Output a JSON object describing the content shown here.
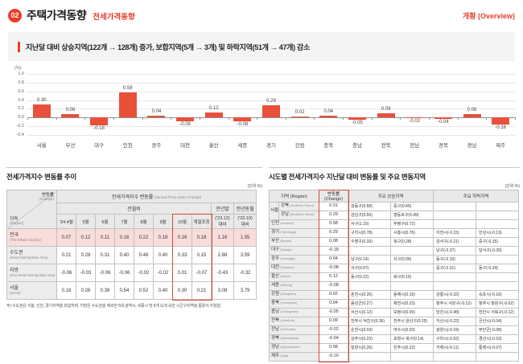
{
  "page": {
    "badge": "02",
    "title": "주택가격동향",
    "subtitle": "전세가격동향",
    "overview": "개황 (Overview)",
    "summary": "지난달 대비 상승지역(122개 → 128개) 증가, 보합지역(5개 → 3개) 및 하락지역(51개 → 47개) 감소"
  },
  "chart_data": {
    "type": "bar",
    "title": "",
    "unit_label": "(%)",
    "categories": [
      "서울",
      "부산",
      "대구",
      "인천",
      "광주",
      "대전",
      "울산",
      "세종",
      "경기",
      "강원",
      "충북",
      "충남",
      "전북",
      "전남",
      "경북",
      "경남",
      "제주"
    ],
    "values": [
      0.3,
      0.08,
      -0.18,
      0.58,
      0.04,
      -0.08,
      0.12,
      -0.08,
      0.29,
      0.02,
      0.04,
      -0.05,
      0.09,
      -0.02,
      -0.04,
      0.08,
      -0.16
    ],
    "xlabel": "",
    "ylabel": "(%)",
    "ylim": [
      -0.4,
      1.0
    ],
    "yticks": [
      1.0,
      0.8,
      0.6,
      0.4,
      0.2,
      0.0,
      -0.2,
      -0.4
    ],
    "grid": "horizontal-dotted",
    "legend": "none",
    "bar_color": "#e8503a"
  },
  "left_table": {
    "title": "전세가격지수 변동률 추이",
    "unit": "(단위:%)",
    "corner": {
      "change": "변동률",
      "change_en": "(Change)",
      "region": "지역",
      "region_en": "(Region)"
    },
    "group_header": "전세가격지수 변동률",
    "group_header_en": "(Jeonse Price Index Change)",
    "subgroup": "전월비",
    "col_headers": [
      "'24.4월",
      "5월",
      "6월",
      "7월",
      "8월",
      "9월",
      "10월",
      "계절조정"
    ],
    "year_cols": [
      {
        "top": "전년말",
        "mid": "('23.12)",
        "bot": "대비"
      },
      {
        "top": "전년동월",
        "mid": "('23.10)",
        "bot": "대비"
      }
    ],
    "rows": [
      {
        "name": "전국",
        "en": "(The Whole Country)",
        "highlight": true,
        "values": [
          "0.07",
          "0.12",
          "0.11",
          "0.16",
          "0.22",
          "0.19",
          "0.16",
          "0.18",
          "1.16",
          "1.55"
        ]
      },
      {
        "name": "수도권",
        "en": "(Seoul Metropolitan Area)",
        "highlight": false,
        "values": [
          "0.21",
          "0.28",
          "0.31",
          "0.40",
          "0.46",
          "0.40",
          "0.33",
          "0.15",
          "2.88",
          "3.59"
        ]
      },
      {
        "name": "지방",
        "en": "(Non-Seoul Metropolitan Area)",
        "highlight": false,
        "values": [
          "-0.06",
          "-0.03",
          "-0.06",
          "-0.06",
          "-0.02",
          "-0.02",
          "0.01",
          "-0.07",
          "-0.43",
          "-0.32"
        ]
      },
      {
        "name": "서울",
        "en": "(Seoul)",
        "highlight": false,
        "values": [
          "0.18",
          "0.26",
          "0.38",
          "0.54",
          "0.52",
          "0.40",
          "0.30",
          "0.21",
          "3.08",
          "3.79"
        ]
      }
    ],
    "footnote": "주) 수도권은 서울, 인천, 경기지역을 포함하며, 지방은 수도권을 제외한 5대 광역시, 세종시 및 8개 도에 속한 시군구지역을 통틀어 지칭함"
  },
  "right_table": {
    "title": "시도별 전세가격지수 지난달 대비 변동률 및 주요 변동지역",
    "unit": "(단위:%)",
    "headers": {
      "region": "지역 (Region)",
      "change": "변동률 (Change)",
      "up": "주요 상승지역",
      "down": "주요 하락지역"
    },
    "rows": [
      {
        "group": "서울",
        "name": "강북",
        "en": "(Northern Seoul)",
        "change": "0.31",
        "up": [
          "성동구(0.68)",
          "중구(0.45)"
        ],
        "down": []
      },
      {
        "group": "서울",
        "name": "강남",
        "en": "(Southern Seoul)",
        "change": "0.29",
        "up": [
          "강남구(0.55)",
          "영등포구(0.49)"
        ],
        "down": []
      },
      {
        "name": "인천",
        "en": "(Incheon)",
        "change": "0.58",
        "up": [
          "서구(1.15)",
          "부평구(0.72)"
        ],
        "down": []
      },
      {
        "name": "경기",
        "en": "(Gyeonggi)",
        "change": "0.29",
        "up": [
          "구리시(0.78)",
          "시흥시(0.76)"
        ],
        "down": [
          "이천시(-0.15)",
          "안성시(-0.13)"
        ]
      },
      {
        "name": "부산",
        "en": "(Busan)",
        "change": "0.08",
        "up": [
          "수영구(0.33)",
          "북구(0.28)"
        ],
        "down": [
          "강서구(-0.21)",
          "중구(-0.15)"
        ]
      },
      {
        "name": "대구",
        "en": "(Daegu)",
        "change": "-0.18",
        "up": [],
        "down": [
          "남구(-0.37)",
          "달서구(-0.30)"
        ]
      },
      {
        "name": "광주",
        "en": "(Gwangju)",
        "change": "0.04",
        "up": [
          "남구(0.14)",
          "서구(0.06)"
        ],
        "down": [
          "동구(-0.10)"
        ]
      },
      {
        "name": "대전",
        "en": "(Daejeon)",
        "change": "-0.08",
        "up": [
          "서구(0.07)"
        ],
        "down": [
          "중구(-0.31)",
          "동구(-0.24)"
        ]
      },
      {
        "name": "울산",
        "en": "(Ulsan)",
        "change": "0.12",
        "up": [
          "동구(0.22)",
          "북구(0.16)"
        ],
        "down": []
      },
      {
        "name": "세종",
        "en": "(Sejong)",
        "change": "-0.08",
        "up": [],
        "down": []
      },
      {
        "name": "강원",
        "en": "(Gangwon)",
        "change": "0.02",
        "up": [
          "춘천시(0.26)",
          "동해시(0.19)"
        ],
        "down": [
          "강릉시(-0.32)",
          "속초시(-0.16)"
        ]
      },
      {
        "name": "충북",
        "en": "(Chungbuk)",
        "change": "0.04",
        "up": [
          "음성군(0.27)",
          "제천시(0.23)"
        ],
        "down": [
          "청주시 서원구(-0.12)",
          "청주시 청원구(-0.02)"
        ]
      },
      {
        "name": "충남",
        "en": "(Chungnam)",
        "change": "-0.05",
        "up": [
          "서산시(0.12)",
          "보령시(0.06)"
        ],
        "down": [
          "당진시(-0.48)",
          "천안시 서북구(-0.12)"
        ]
      },
      {
        "name": "전북",
        "en": "(Jeonbuk)",
        "change": "0.09",
        "up": [
          "전주시 덕진구(0.36)",
          "전주시 완산구(0.25)"
        ],
        "down": [
          "익산시(-0.22)",
          "군산시(-0.04)"
        ]
      },
      {
        "name": "전남",
        "en": "(Jeonnam)",
        "change": "-0.02",
        "up": [
          "순천시(0.03)",
          "여수시(0.03)"
        ],
        "down": [
          "광양시(-0.24)",
          "무안군(-0.08)"
        ]
      },
      {
        "name": "경북",
        "en": "(Gyeongbuk)",
        "change": "-0.04",
        "up": [
          "상주시(0.23)",
          "포항시 북구(0.14)"
        ],
        "down": [
          "구미시(-0.52)",
          "경산시(-0.10)"
        ]
      },
      {
        "name": "경남",
        "en": "(Gyeongnam)",
        "change": "0.08",
        "up": [
          "밀양시(0.26)",
          "진주시(0.22)"
        ],
        "down": [
          "거제시(-0.11)",
          "통영시(-0.07)"
        ]
      },
      {
        "name": "제주",
        "en": "(Jeju)",
        "change": "-0.16",
        "up": [],
        "down": []
      }
    ]
  }
}
